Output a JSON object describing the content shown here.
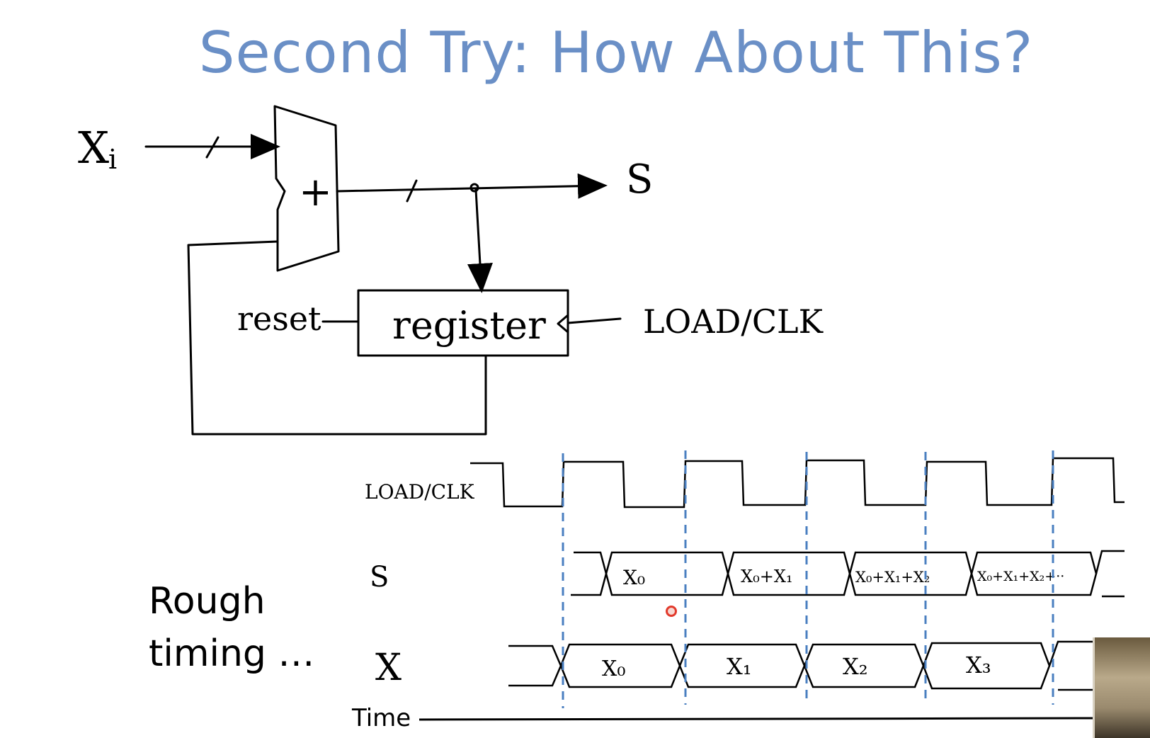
{
  "slide": {
    "title": "Second Try: How About This?",
    "side_note_line1": "Rough",
    "side_note_line2": "timing …",
    "time_label": "Time"
  },
  "circuit": {
    "input_label": "X",
    "input_subscript": "i",
    "adder_symbol": "+",
    "output_label": "S",
    "register_label": "register",
    "reset_label": "reset",
    "clock_label": "LOAD/CLK"
  },
  "timing": {
    "clk_label": "LOAD/CLK",
    "s_label": "S",
    "x_label": "X",
    "s_values": [
      "X₀",
      "X₀+X₁",
      "X₀+X₁+X₂",
      "X₀+X₁+X₂+··"
    ],
    "x_values": [
      "X₀",
      "X₁",
      "X₂",
      "X₃"
    ]
  },
  "colors": {
    "title": "#6a8fc6",
    "ink": "#000000",
    "guide_dashes": "#4a7fc0",
    "pointer": "#e23a2c"
  }
}
